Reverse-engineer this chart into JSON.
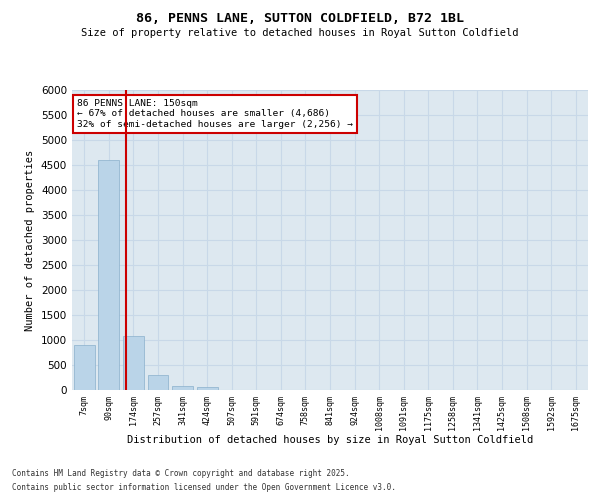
{
  "title": "86, PENNS LANE, SUTTON COLDFIELD, B72 1BL",
  "subtitle": "Size of property relative to detached houses in Royal Sutton Coldfield",
  "xlabel": "Distribution of detached houses by size in Royal Sutton Coldfield",
  "ylabel": "Number of detached properties",
  "bar_color": "#bad4e8",
  "bar_edge_color": "#8ab0cc",
  "grid_color": "#c8d8e8",
  "background_color": "#dde8f0",
  "vline_color": "#cc0000",
  "annotation_line1": "86 PENNS LANE: 150sqm",
  "annotation_line2": "← 67% of detached houses are smaller (4,686)",
  "annotation_line3": "32% of semi-detached houses are larger (2,256) →",
  "annotation_box_color": "#cc0000",
  "categories": [
    "7sqm",
    "90sqm",
    "174sqm",
    "257sqm",
    "341sqm",
    "424sqm",
    "507sqm",
    "591sqm",
    "674sqm",
    "758sqm",
    "841sqm",
    "924sqm",
    "1008sqm",
    "1091sqm",
    "1175sqm",
    "1258sqm",
    "1341sqm",
    "1425sqm",
    "1508sqm",
    "1592sqm",
    "1675sqm"
  ],
  "values": [
    900,
    4600,
    1080,
    300,
    80,
    55,
    0,
    0,
    0,
    0,
    0,
    0,
    0,
    0,
    0,
    0,
    0,
    0,
    0,
    0,
    0
  ],
  "ylim": [
    0,
    6000
  ],
  "yticks": [
    0,
    500,
    1000,
    1500,
    2000,
    2500,
    3000,
    3500,
    4000,
    4500,
    5000,
    5500,
    6000
  ],
  "footer1": "Contains HM Land Registry data © Crown copyright and database right 2025.",
  "footer2": "Contains public sector information licensed under the Open Government Licence v3.0."
}
